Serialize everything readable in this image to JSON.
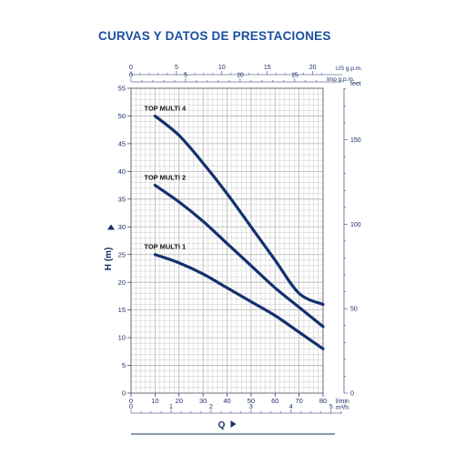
{
  "chart_data": {
    "type": "line",
    "title": "CURVAS Y DATOS DE PRESTACIONES",
    "ylabel": "H (m)",
    "xlabel": "Q",
    "ylim": [
      0,
      55
    ],
    "xlim": [
      0,
      80
    ],
    "grid": true,
    "y_ticks": [
      0,
      5,
      10,
      15,
      20,
      25,
      30,
      35,
      40,
      45,
      50,
      55
    ],
    "x_ticks": [
      0,
      10,
      20,
      30,
      40,
      50,
      60,
      70,
      80
    ],
    "x_unit": "l/min",
    "secondary_axes": {
      "top_us_gpm": {
        "label": "US g.p.m.",
        "ticks": [
          0,
          5,
          10,
          15,
          20
        ]
      },
      "top_imp_gpm": {
        "label": "Imp g.p.m.",
        "ticks": [
          0,
          5,
          10,
          15
        ]
      },
      "right_feet": {
        "label": "feet",
        "ticks": [
          0,
          50,
          100,
          150
        ]
      },
      "bottom_m3h": {
        "label": "m³/h",
        "ticks": [
          0,
          1,
          2,
          3,
          4,
          5
        ]
      }
    },
    "series": [
      {
        "name": "TOP MULTI 4",
        "x": [
          10,
          20,
          30,
          40,
          50,
          60,
          70,
          80
        ],
        "y": [
          50,
          46.5,
          41.5,
          36,
          30,
          24,
          18,
          16
        ]
      },
      {
        "name": "TOP MULTI 2",
        "x": [
          10,
          20,
          30,
          40,
          50,
          60,
          70,
          80
        ],
        "y": [
          37.5,
          34.5,
          31,
          27,
          23,
          19,
          15.5,
          12
        ]
      },
      {
        "name": "TOP MULTI 1",
        "x": [
          10,
          20,
          30,
          40,
          50,
          60,
          70,
          80
        ],
        "y": [
          25,
          23.5,
          21.5,
          19,
          16.5,
          14,
          11,
          8
        ]
      }
    ],
    "line_color": "#14306e",
    "grid_color": "#b5b5b5"
  }
}
